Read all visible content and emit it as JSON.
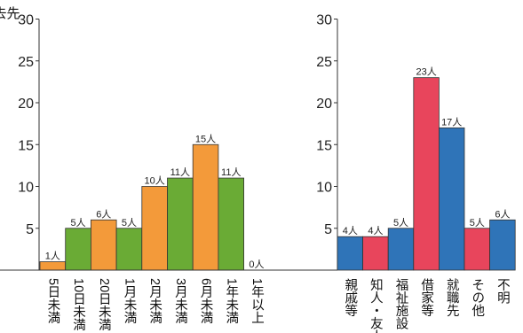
{
  "chart_data": [
    {
      "type": "bar",
      "title": "",
      "xlabel": "",
      "ylabel": "",
      "ylim": [
        0,
        30
      ],
      "yticks": [
        5,
        10,
        15,
        20,
        25,
        30
      ],
      "grid": false,
      "categories": [
        "5日未満",
        "10日未満",
        "20日未満",
        "1月未満",
        "2月未満",
        "3月未満",
        "6月未満",
        "1年未満",
        "1年以上"
      ],
      "values": [
        1,
        5,
        6,
        5,
        10,
        11,
        15,
        11,
        0
      ],
      "data_labels": [
        "1人",
        "5人",
        "6人",
        "5人",
        "10人",
        "11人",
        "15人",
        "11人",
        "0人"
      ],
      "bar_colors": [
        "#f39a3a",
        "#6aab35",
        "#f39a3a",
        "#6aab35",
        "#f39a3a",
        "#6aab35",
        "#f39a3a",
        "#6aab35",
        "#f39a3a"
      ]
    },
    {
      "type": "bar",
      "title": "退去先",
      "xlabel": "",
      "ylabel": "",
      "ylim": [
        0,
        30
      ],
      "yticks": [
        5,
        10,
        15,
        20,
        25,
        30
      ],
      "grid": false,
      "categories": [
        "親戚等",
        "知人・友人",
        "福祉施設",
        "借家等",
        "就職先",
        "その他",
        "不明"
      ],
      "values": [
        4,
        4,
        5,
        23,
        17,
        5,
        6
      ],
      "data_labels": [
        "4人",
        "4人",
        "5人",
        "23人",
        "17人",
        "5人",
        "6人"
      ],
      "bar_colors": [
        "#2f74b8",
        "#e8455c",
        "#2f74b8",
        "#e8455c",
        "#2f74b8",
        "#e8455c",
        "#2f74b8"
      ]
    }
  ]
}
